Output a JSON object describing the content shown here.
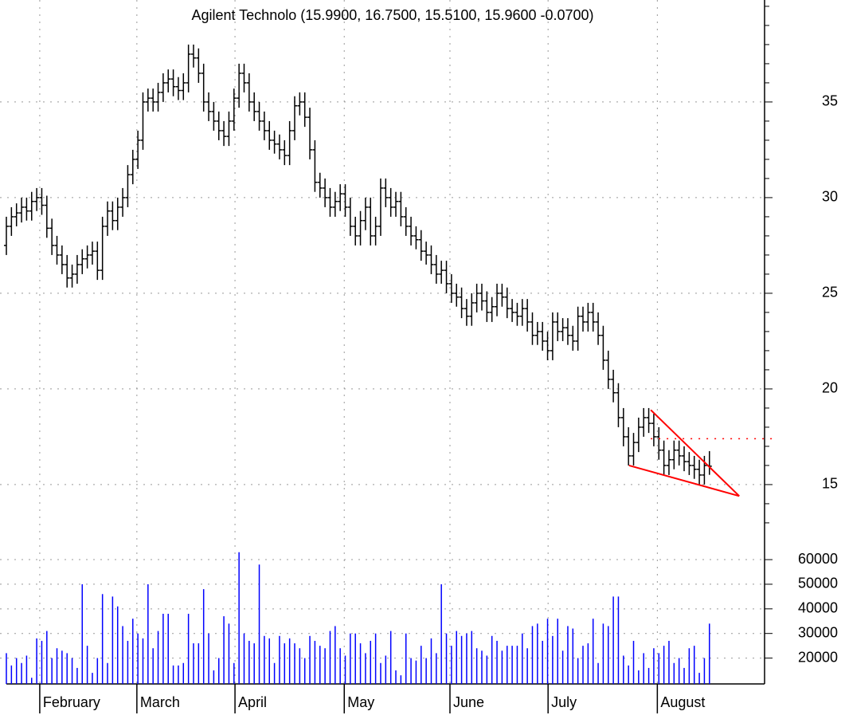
{
  "chart_data": [
    {
      "type": "ohlc",
      "title": "Agilent Technolo (15.9900, 16.7500, 15.5100, 15.9600 -0.0700)",
      "color": "#000000",
      "open": [
        27.5,
        28.5,
        29,
        29.2,
        29.5,
        29.3,
        29.8,
        30,
        29.6,
        28.4,
        27.5,
        27,
        26.5,
        25.8,
        26,
        26.5,
        26.8,
        27,
        27.2,
        26.2,
        28.5,
        29.3,
        28.8,
        29.5,
        30,
        31.2,
        32,
        33,
        35,
        35.2,
        35,
        35.5,
        36,
        36.2,
        35.8,
        35.6,
        36,
        37.5,
        37.3,
        36.5,
        35,
        34.5,
        34,
        33.5,
        33.2,
        34,
        35.2,
        36.5,
        36,
        35,
        34.5,
        34,
        33.5,
        33,
        32.8,
        32.5,
        32.2,
        33.5,
        34.8,
        35,
        34.2,
        32.5,
        30.8,
        30.5,
        30,
        29.5,
        29.8,
        30.2,
        29.5,
        28.5,
        28,
        28.8,
        29.5,
        28,
        28.5,
        30.5,
        30,
        29.5,
        29.8,
        29,
        28.5,
        28,
        27.8,
        27.2,
        27,
        26.5,
        26,
        26.2,
        25.5,
        25,
        24.8,
        24.2,
        23.8,
        24.5,
        25,
        24.6,
        24,
        24.3,
        25,
        24.8,
        24.2,
        24,
        23.8,
        24.2,
        23.5,
        22.8,
        23,
        22.5,
        22,
        23.5,
        23,
        23.2,
        22.8,
        22.5,
        23.8,
        23.5,
        24,
        23.5,
        22.8,
        21.5,
        20.5,
        19.8,
        18.5,
        17.5,
        16.5,
        17.2,
        18,
        18.5,
        18.2,
        17.5,
        16.8,
        16,
        16.3,
        16.8,
        16.5,
        16.2,
        16,
        15.8,
        15.5,
        15.99
      ],
      "high": [
        29,
        29.5,
        29.7,
        30,
        30,
        30.3,
        30.5,
        30.5,
        30.1,
        28.9,
        28,
        27.5,
        27,
        26.5,
        27,
        27.3,
        27.5,
        27.7,
        27.7,
        29,
        29.8,
        29.8,
        30,
        30.5,
        31.7,
        32.5,
        33.5,
        35.5,
        35.7,
        35.7,
        36,
        36.5,
        36.7,
        36.7,
        36.3,
        36.5,
        38,
        38,
        37.8,
        37,
        35.5,
        35,
        34.5,
        34,
        34.5,
        35.7,
        37,
        37,
        36.5,
        35.5,
        35,
        34.5,
        34,
        33.5,
        33.3,
        33,
        34,
        35.3,
        35.5,
        35.5,
        34.7,
        33,
        31.3,
        31,
        30.5,
        30.3,
        30.7,
        30.7,
        30,
        29,
        29.3,
        30,
        30,
        29,
        31,
        31,
        30.5,
        30.3,
        30.3,
        29.5,
        29,
        28.5,
        28.3,
        27.7,
        27.5,
        27,
        26.7,
        26.7,
        26,
        25.5,
        25.3,
        24.7,
        25,
        25.5,
        25.5,
        25.1,
        24.8,
        25.5,
        25.5,
        25.3,
        24.7,
        24.5,
        24.7,
        24.7,
        24,
        23.5,
        23.5,
        23,
        24,
        24,
        23.7,
        23.7,
        23.3,
        24.3,
        24.3,
        24.5,
        24.5,
        24,
        23.3,
        22,
        21,
        20.3,
        19,
        18,
        17.7,
        18.5,
        19,
        19,
        18.7,
        18,
        17.3,
        16.8,
        17.3,
        17.3,
        17,
        16.7,
        16.5,
        16.3,
        16.5,
        16.75
      ],
      "low": [
        27,
        28,
        28.5,
        28.7,
        28.8,
        28.8,
        29.3,
        29.1,
        27.9,
        27,
        26.5,
        26,
        25.3,
        25.3,
        25.5,
        26,
        26.3,
        26.5,
        25.7,
        25.7,
        28,
        28.3,
        28.3,
        29,
        29.5,
        30.7,
        31.5,
        32.5,
        34.5,
        34.5,
        34.5,
        35,
        35.5,
        35.3,
        35.1,
        35.1,
        35.5,
        36.8,
        36,
        34.5,
        34,
        33.5,
        33,
        32.7,
        32.7,
        33.5,
        34.7,
        35.5,
        34.5,
        34,
        33.5,
        33,
        32.5,
        32.3,
        32,
        31.7,
        31.7,
        33,
        34.3,
        33.7,
        32,
        30.3,
        30,
        29.5,
        29,
        29,
        29.3,
        29,
        28,
        27.5,
        27.5,
        28.3,
        27.5,
        27.5,
        28,
        29.5,
        29,
        29,
        28.5,
        28,
        27.5,
        27.3,
        26.7,
        26.5,
        26,
        25.5,
        25.5,
        25,
        24.5,
        24.3,
        23.7,
        23.3,
        23.3,
        24,
        24.1,
        23.5,
        23.5,
        23.8,
        24.3,
        23.7,
        23.5,
        23.3,
        23.3,
        23,
        22.3,
        22.3,
        22,
        21.5,
        21.5,
        22.5,
        22.5,
        22.3,
        22,
        22,
        23,
        23,
        23,
        22.3,
        21,
        20,
        19.3,
        18,
        17,
        16,
        16,
        16.7,
        17.5,
        17.7,
        17,
        16.3,
        15.5,
        15.5,
        15.8,
        16,
        15.7,
        15.5,
        15.3,
        15,
        15,
        15.51
      ],
      "close": [
        28.5,
        29,
        29.2,
        29.5,
        29.3,
        29.8,
        30,
        29.6,
        28.4,
        27.5,
        27,
        26.5,
        25.8,
        26,
        26.5,
        26.8,
        27,
        27.2,
        26.2,
        28.5,
        29.3,
        28.8,
        29.5,
        30,
        31.2,
        32,
        33,
        35,
        35.2,
        35,
        35.5,
        36,
        36.2,
        35.8,
        35.6,
        36,
        37.5,
        37.3,
        36.5,
        35,
        34.5,
        34,
        33.5,
        33.2,
        34,
        35.2,
        36.5,
        36,
        35,
        34.5,
        34,
        33.5,
        33,
        32.8,
        32.5,
        32.2,
        33.5,
        34.8,
        35,
        34.2,
        32.5,
        30.8,
        30.5,
        30,
        29.5,
        29.8,
        30.2,
        29.5,
        28.5,
        28,
        28.8,
        29.5,
        28,
        28.5,
        30.5,
        30,
        29.5,
        29.8,
        29,
        28.5,
        28,
        27.8,
        27.2,
        27,
        26.5,
        26,
        26.2,
        25.5,
        25,
        24.8,
        24.2,
        23.8,
        24.5,
        25,
        24.6,
        24,
        24.3,
        25,
        24.8,
        24.2,
        24,
        23.8,
        24.2,
        23.5,
        22.8,
        23,
        22.5,
        22,
        23.5,
        23,
        23.2,
        22.8,
        22.5,
        23.8,
        23.5,
        24,
        23.5,
        22.8,
        21.5,
        20.5,
        19.8,
        18.5,
        17.5,
        16.5,
        17.2,
        18,
        18.5,
        18.2,
        17.5,
        16.8,
        16,
        16.3,
        16.8,
        16.5,
        16.2,
        16,
        15.8,
        15.5,
        16.0,
        15.96
      ],
      "xlim": [
        -1.26,
        149.9
      ],
      "xticks": [
        {
          "value": 6.6,
          "label": "February"
        },
        {
          "value": 25.8,
          "label": "March"
        },
        {
          "value": 45.2,
          "label": "April"
        },
        {
          "value": 66.8,
          "label": "May"
        },
        {
          "value": 87.7,
          "label": "June"
        },
        {
          "value": 107.1,
          "label": "July"
        },
        {
          "value": 128.7,
          "label": "August"
        }
      ],
      "ylim": [
        12.83,
        40.33
      ],
      "yticks": [
        15,
        20,
        25,
        30,
        35
      ],
      "yminorticks": [
        13,
        14,
        16,
        17,
        18,
        19,
        21,
        22,
        23,
        24,
        26,
        27,
        28,
        29,
        31,
        32,
        33,
        34,
        36,
        37,
        38,
        39,
        40
      ],
      "grid": true,
      "trendline_color": "#ff0000",
      "trendlines": [
        {
          "x": [
            123.1,
            144.9
          ],
          "y": [
            16.0,
            14.4
          ]
        },
        {
          "x": [
            127.4,
            144.9
          ],
          "y": [
            18.9,
            14.4
          ]
        },
        {
          "x": [
            127.4,
            152.3
          ],
          "y": [
            17.4,
            17.4
          ],
          "dashed": true
        }
      ]
    },
    {
      "type": "bar",
      "color": "#0000ff",
      "values": [
        22000,
        17000,
        20000,
        18000,
        21000,
        12000,
        28000,
        27000,
        31000,
        20000,
        24000,
        23000,
        22000,
        20000,
        16000,
        50000,
        25000,
        14000,
        20000,
        46000,
        18000,
        45000,
        41000,
        33000,
        27000,
        36000,
        30000,
        28000,
        50000,
        24000,
        31000,
        38000,
        38000,
        17000,
        17000,
        18000,
        38000,
        26000,
        26000,
        48000,
        30000,
        15000,
        20000,
        37000,
        34000,
        18000,
        63000,
        30000,
        27000,
        26000,
        58000,
        29000,
        28000,
        18000,
        29000,
        26000,
        28000,
        26000,
        24000,
        20000,
        29000,
        27000,
        25000,
        24000,
        31000,
        33000,
        24000,
        21000,
        30000,
        30000,
        26000,
        22000,
        27000,
        30000,
        18000,
        21000,
        31000,
        15000,
        13000,
        30000,
        20000,
        19000,
        25000,
        20000,
        28000,
        22000,
        50000,
        30000,
        25000,
        31000,
        29000,
        30000,
        31000,
        24000,
        23000,
        21000,
        29000,
        27000,
        23000,
        25000,
        25000,
        25000,
        30000,
        24000,
        33000,
        34000,
        27000,
        36000,
        29000,
        36000,
        23000,
        33000,
        32000,
        20000,
        25000,
        26000,
        36000,
        18000,
        34000,
        33000,
        45000,
        45000,
        21000,
        17000,
        27000,
        15000,
        22000,
        16000,
        24000,
        22000,
        25000,
        27000,
        18000,
        20000,
        16000,
        24000,
        25000,
        14000,
        20000,
        34000
      ],
      "xlim": [
        -1.26,
        149.9
      ],
      "ylim": [
        9500,
        72000
      ],
      "yticks": [
        20000,
        30000,
        40000,
        50000,
        60000
      ],
      "grid": true
    }
  ]
}
